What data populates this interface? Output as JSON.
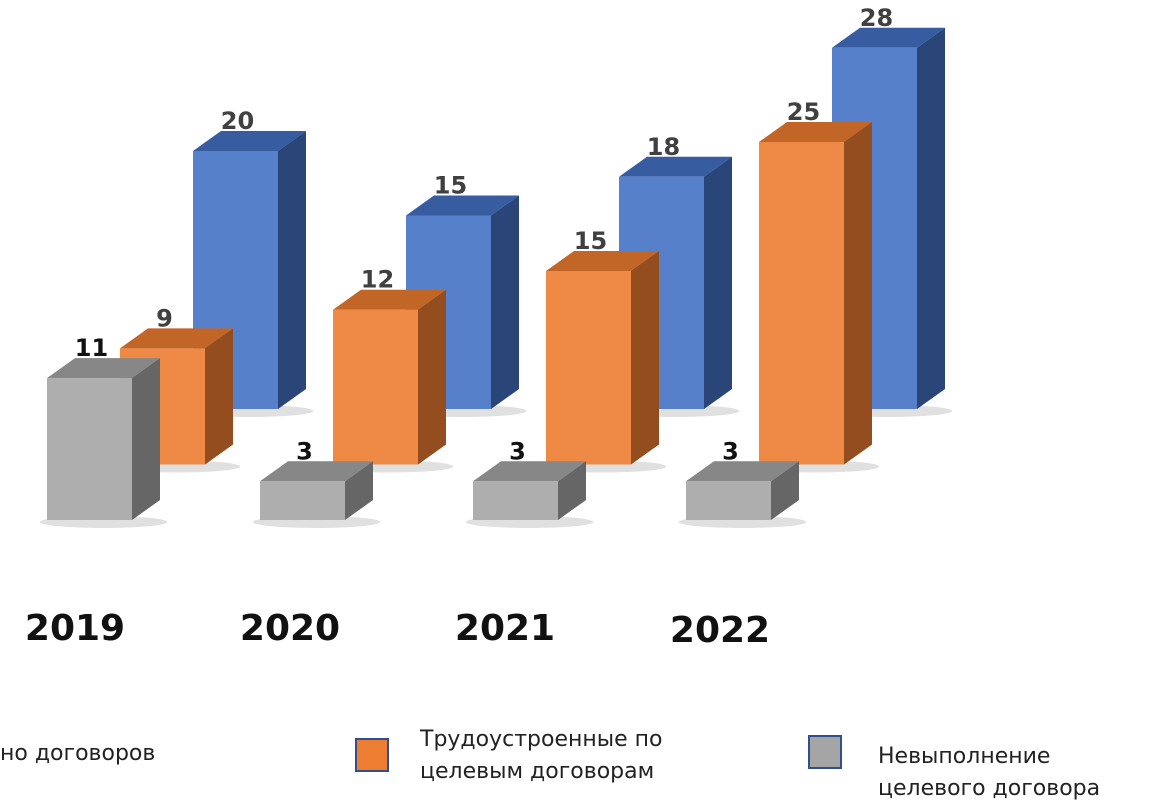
{
  "chart_data": {
    "type": "bar3d",
    "categories": [
      "2019",
      "2020",
      "2021",
      "2022"
    ],
    "series": [
      {
        "name": "но договоров",
        "color": "#4472c4",
        "values": [
          20,
          15,
          18,
          28
        ]
      },
      {
        "name": "Трудоустроенные по целевым договорам",
        "color": "#ed7d31",
        "values": [
          9,
          12,
          15,
          25
        ]
      },
      {
        "name": "Невыполнение целевого договора",
        "color": "#a5a5a5",
        "values": [
          11,
          3,
          3,
          3
        ]
      }
    ]
  }
}
